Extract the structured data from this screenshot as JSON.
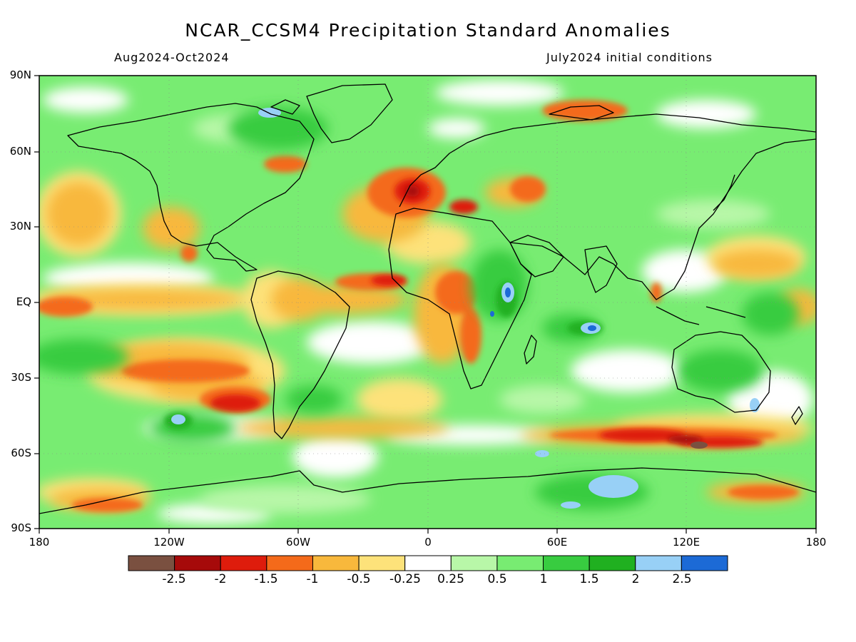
{
  "header": {
    "title": "NCAR_CCSM4 Precipitation Standard Anomalies",
    "period": "Aug2024-Oct2024",
    "init": "July2024 initial conditions"
  },
  "axes": {
    "lat_labels": [
      "90N",
      "60N",
      "30N",
      "EQ",
      "30S",
      "60S",
      "90S"
    ],
    "lon_labels": [
      "180",
      "120W",
      "60W",
      "0",
      "60E",
      "120E",
      "180"
    ]
  },
  "colorbar": {
    "colors": [
      "#7a5040",
      "#a60a0a",
      "#de1c0c",
      "#f46a1a",
      "#f8b83c",
      "#fde27a",
      "#ffffff",
      "#b8f7a8",
      "#78ec72",
      "#38cc40",
      "#20b020",
      "#98d0f6",
      "#1c6ad6"
    ],
    "labels": [
      "-2.5",
      "-2",
      "-1.5",
      "-1",
      "-0.5",
      "-0.25",
      "0.25",
      "0.5",
      "1",
      "1.5",
      "2",
      "2.5"
    ]
  }
}
